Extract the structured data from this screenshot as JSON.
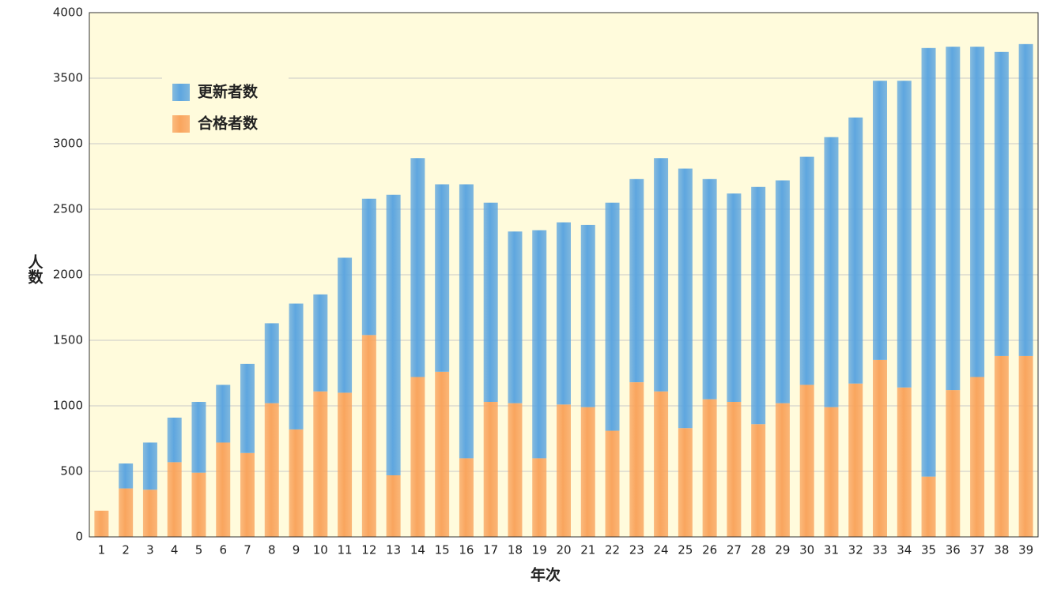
{
  "chart_data": {
    "type": "stacked_bar",
    "xlabel": "年次",
    "ylabel": "人数",
    "categories": [
      "1",
      "2",
      "3",
      "4",
      "5",
      "6",
      "7",
      "8",
      "9",
      "10",
      "11",
      "12",
      "13",
      "14",
      "15",
      "16",
      "17",
      "18",
      "19",
      "20",
      "21",
      "22",
      "23",
      "24",
      "25",
      "26",
      "27",
      "28",
      "29",
      "30",
      "31",
      "32",
      "33",
      "34",
      "35",
      "36",
      "37",
      "38",
      "39"
    ],
    "series": [
      {
        "name": "更新者数",
        "color": "#5ea6df",
        "values": [
          0,
          190,
          360,
          340,
          540,
          440,
          680,
          610,
          960,
          740,
          1030,
          1040,
          2140,
          1670,
          1430,
          2090,
          1520,
          1310,
          1740,
          1390,
          1390,
          1740,
          1550,
          1780,
          1980,
          1680,
          1590,
          1810,
          1700,
          1740,
          2060,
          2030,
          2130,
          2340,
          3270,
          2620,
          2520,
          2320,
          2380
        ]
      },
      {
        "name": "合格者数",
        "color": "#f9a55e",
        "values": [
          200,
          370,
          360,
          570,
          490,
          720,
          640,
          1020,
          820,
          1110,
          1100,
          1540,
          470,
          1220,
          1260,
          600,
          1030,
          1020,
          600,
          1010,
          990,
          810,
          1180,
          1110,
          830,
          1050,
          1030,
          860,
          1020,
          1160,
          990,
          1170,
          1350,
          1140,
          460,
          1120,
          1220,
          1380,
          1380
        ]
      }
    ],
    "ylim": [
      0,
      4000
    ],
    "yticks": [
      0,
      500,
      1000,
      1500,
      2000,
      2500,
      3000,
      3500,
      4000
    ],
    "grid": true,
    "legend": "upper left",
    "background": "#fffbdc"
  }
}
